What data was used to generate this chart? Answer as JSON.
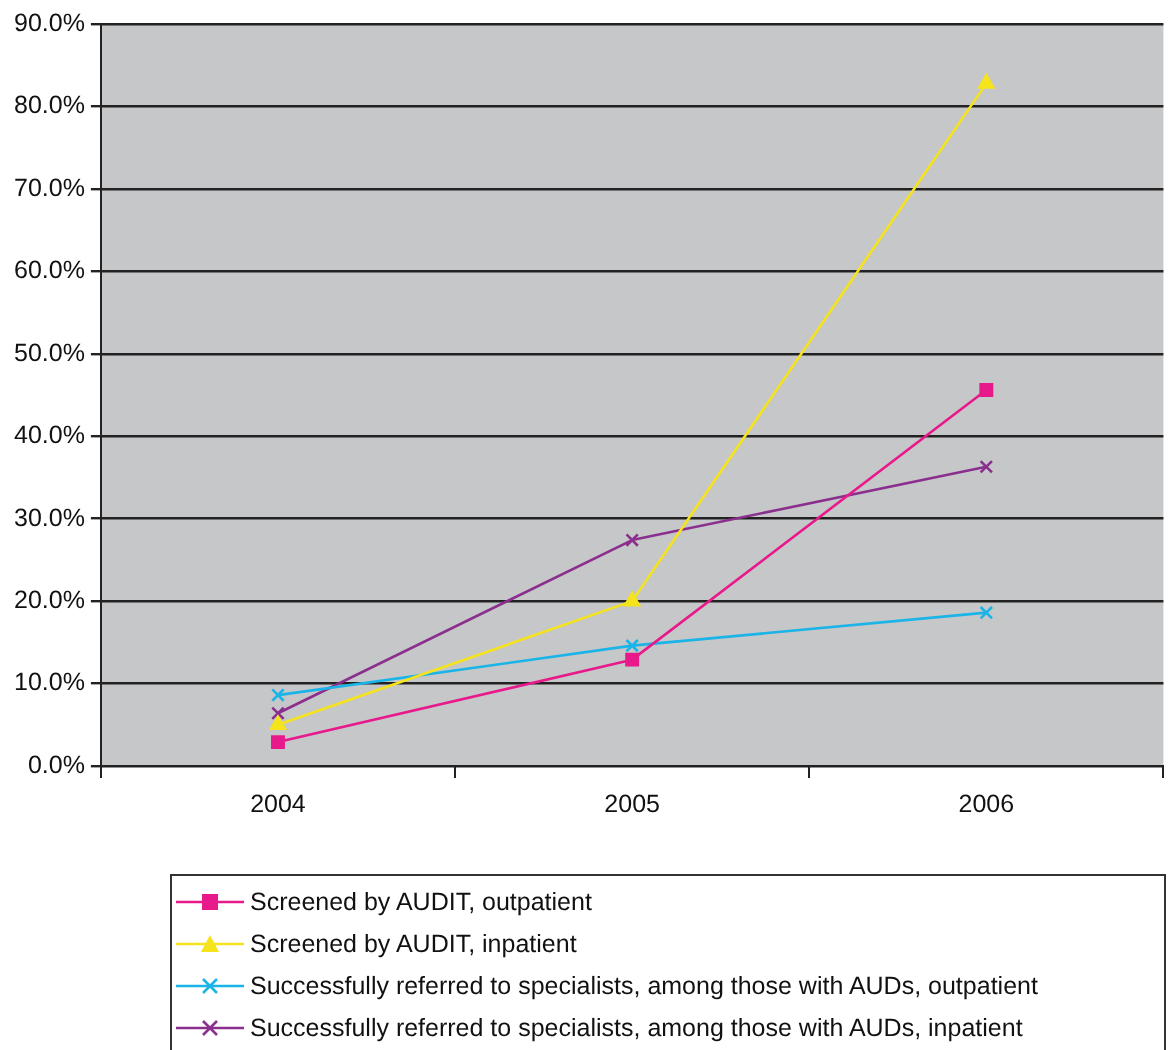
{
  "chart_data": {
    "type": "line",
    "categories": [
      "2004",
      "2005",
      "2006"
    ],
    "series": [
      {
        "name": "Screened by AUDIT, outpatient",
        "color": "#e8198b",
        "marker": "square",
        "values": [
          2.9,
          12.9,
          45.6
        ]
      },
      {
        "name": "Screened by AUDIT, inpatient",
        "color": "#f5e31c",
        "marker": "triangle",
        "values": [
          5.0,
          20.0,
          82.8
        ]
      },
      {
        "name": "Successfully referred to specialists, among those with AUDs, outpatient",
        "color": "#1ab4e8",
        "marker": "cross",
        "values": [
          8.6,
          14.6,
          18.6
        ]
      },
      {
        "name": "Successfully referred to specialists, among those with AUDs, inpatient",
        "color": "#8b2f8f",
        "marker": "cross",
        "values": [
          6.4,
          27.4,
          36.3
        ]
      }
    ],
    "ylim": [
      0,
      90
    ],
    "yticks": [
      {
        "value": 0,
        "label": "0.0%"
      },
      {
        "value": 10,
        "label": "10.0%"
      },
      {
        "value": 20,
        "label": "20.0%"
      },
      {
        "value": 30,
        "label": "30.0%"
      },
      {
        "value": 40,
        "label": "40.0%"
      },
      {
        "value": 50,
        "label": "50.0%"
      },
      {
        "value": 60,
        "label": "60.0%"
      },
      {
        "value": 70,
        "label": "70.0%"
      },
      {
        "value": 80,
        "label": "80.0%"
      },
      {
        "value": 90,
        "label": "90.0%"
      }
    ],
    "grid": "y",
    "legend": "bottom",
    "line_style": "solid"
  }
}
